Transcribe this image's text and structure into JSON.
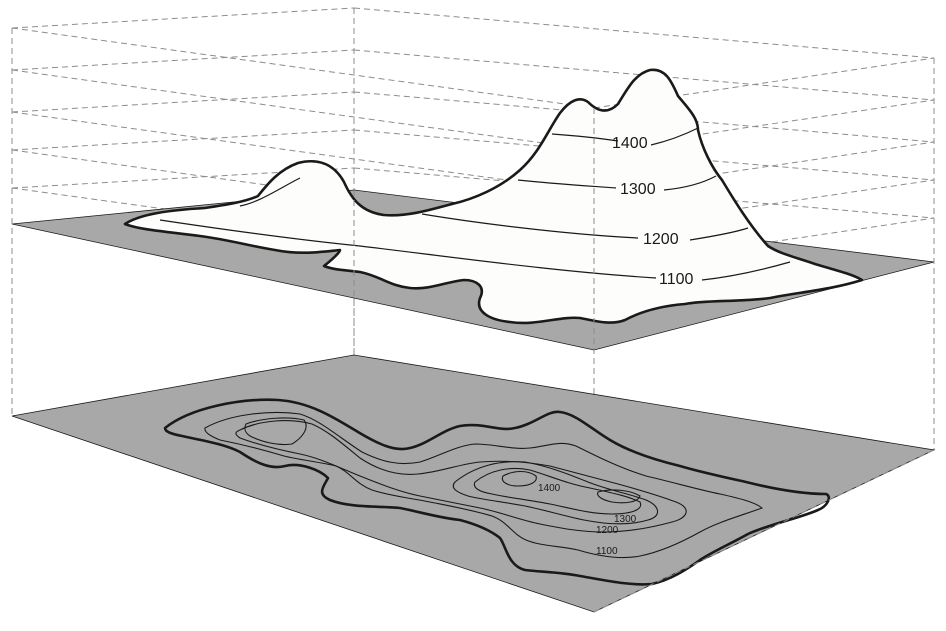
{
  "diagram": {
    "upper_labels": [
      "1400",
      "1300",
      "1200",
      "1100"
    ],
    "lower_labels": [
      "1400",
      "1300",
      "1200",
      "1100"
    ]
  },
  "colors": {
    "plane": "#a8a8a8",
    "terrain": "#fdfdfb",
    "ink": "#1a1a1a",
    "guide": "#8c8c8c"
  }
}
